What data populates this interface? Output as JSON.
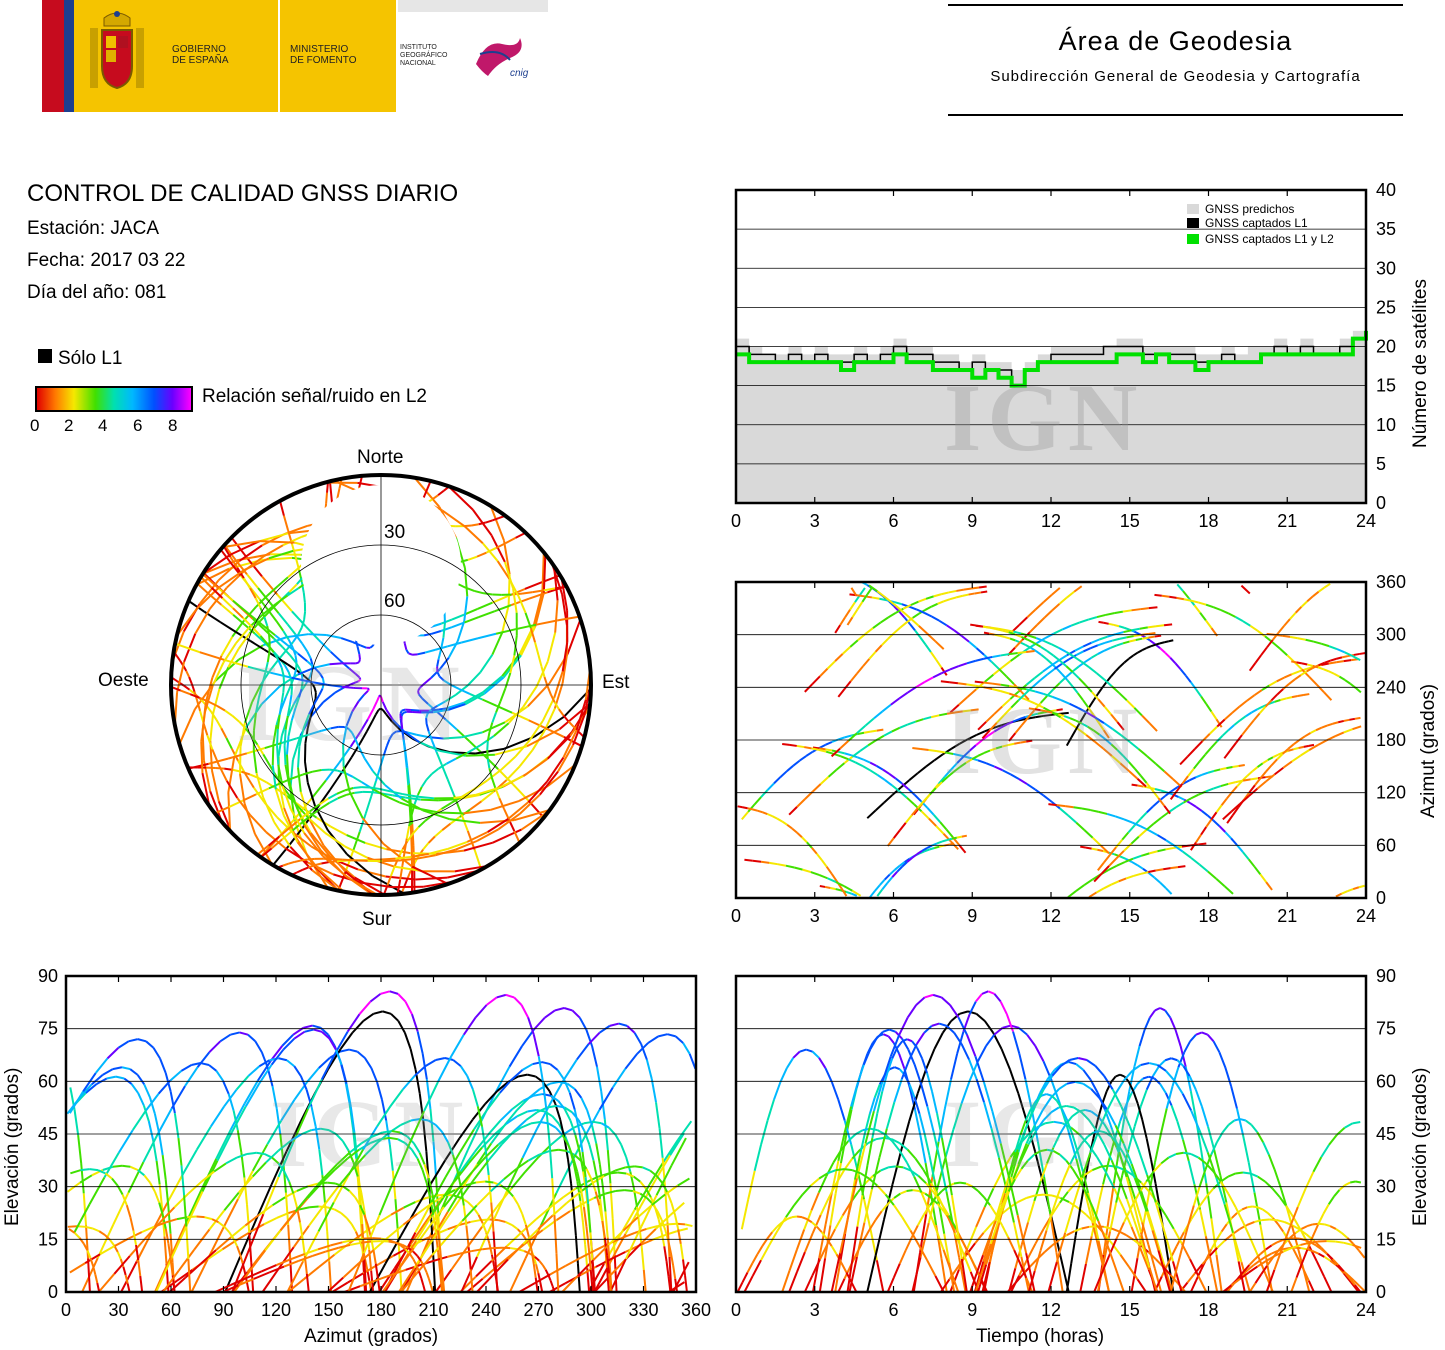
{
  "header": {
    "logo_gobierno": "GOBIERNO\nDE ESPAÑA",
    "logo_ministerio": "MINISTERIO\nDE FOMENTO",
    "logo_ign": "INSTITUTO\nGEOGRÁFICO\nNACIONAL",
    "logo_cnig": "cnig",
    "area_title": "Área de Geodesia",
    "area_subtitle": "Subdirección General de Geodesia y Cartografía"
  },
  "info": {
    "title": "CONTROL DE CALIDAD GNSS DIARIO",
    "station": "Estación: JACA",
    "date": "Fecha: 2017 03 22",
    "doy": "Día del año: 081",
    "legend_l1": "Sólo L1",
    "legend_snr": "Relación señal/ruido en L2",
    "colorbar_ticks": [
      "0",
      "2",
      "4",
      "6",
      "8"
    ]
  },
  "watermark": "IGN",
  "colors": {
    "predicted": "#d9d9d9",
    "l1": "#000000",
    "l1l2": "#00e000",
    "snr_scale": [
      "#e00000",
      "#ff7a00",
      "#f5e800",
      "#40e000",
      "#00e0b0",
      "#00b8ff",
      "#0050ff",
      "#6a00ff",
      "#ff00ff"
    ]
  },
  "chart_data": [
    {
      "id": "skyplot",
      "type": "scatter",
      "title": "",
      "directions": {
        "north": "Norte",
        "south": "Sur",
        "east": "Este",
        "west": "Oeste"
      },
      "elevation_rings": [
        "30",
        "60"
      ],
      "series": [
        {
          "name": "Sólo L1",
          "color": "#000000"
        },
        {
          "name": "Relación señal/ruido en L2",
          "color": "snr_scale"
        }
      ]
    },
    {
      "id": "satellites",
      "type": "area",
      "xlabel": "",
      "ylabel": "Número de satélites",
      "xlim": [
        0,
        24
      ],
      "ylim": [
        0,
        40
      ],
      "xticks": [
        "0",
        "3",
        "6",
        "9",
        "12",
        "15",
        "18",
        "21",
        "24"
      ],
      "yticks": [
        "0",
        "5",
        "10",
        "15",
        "20",
        "25",
        "30",
        "35",
        "40"
      ],
      "legend": [
        "GNSS predichos",
        "GNSS captados L1",
        "GNSS captados L1 y L2"
      ],
      "legend_placement": "top-right",
      "x": [
        0,
        0.5,
        1,
        1.5,
        2,
        2.5,
        3,
        3.5,
        4,
        4.5,
        5,
        5.5,
        6,
        6.5,
        7,
        7.5,
        8,
        8.5,
        9,
        9.5,
        10,
        10.5,
        11,
        11.5,
        12,
        12.5,
        13,
        13.5,
        14,
        14.5,
        15,
        15.5,
        16,
        16.5,
        17,
        17.5,
        18,
        18.5,
        19,
        19.5,
        20,
        20.5,
        21,
        21.5,
        22,
        22.5,
        23,
        23.5,
        24
      ],
      "series": [
        {
          "name": "GNSS predichos",
          "values": [
            21,
            20,
            19,
            19,
            20,
            19,
            20,
            19,
            19,
            20,
            19,
            20,
            21,
            20,
            20,
            19,
            19,
            18,
            19,
            18,
            18,
            17,
            18,
            19,
            20,
            20,
            20,
            20,
            20,
            21,
            21,
            20,
            20,
            20,
            20,
            19,
            19,
            20,
            19,
            20,
            20,
            21,
            20,
            21,
            20,
            20,
            21,
            22,
            23
          ]
        },
        {
          "name": "GNSS captados L1",
          "values": [
            20,
            19,
            19,
            18,
            19,
            18,
            19,
            18,
            18,
            19,
            18,
            19,
            20,
            19,
            19,
            18,
            18,
            17,
            18,
            17,
            17,
            15,
            17,
            18,
            19,
            19,
            19,
            19,
            20,
            20,
            20,
            19,
            19,
            19,
            19,
            18,
            18,
            19,
            18,
            18,
            19,
            20,
            19,
            20,
            19,
            19,
            20,
            21,
            22
          ]
        },
        {
          "name": "GNSS captados L1 y L2",
          "values": [
            19,
            18,
            18,
            18,
            18,
            18,
            18,
            18,
            17,
            18,
            18,
            18,
            19,
            18,
            18,
            17,
            17,
            17,
            16,
            17,
            16,
            15,
            17,
            18,
            18,
            18,
            18,
            18,
            18,
            19,
            19,
            18,
            19,
            18,
            18,
            17,
            18,
            18,
            18,
            18,
            19,
            19,
            19,
            19,
            19,
            19,
            19,
            21,
            22
          ]
        }
      ]
    },
    {
      "id": "azimuth_time",
      "type": "scatter",
      "xlabel": "",
      "ylabel": "Azimut (grados)",
      "xlim": [
        0,
        24
      ],
      "ylim": [
        0,
        360
      ],
      "xticks": [
        "0",
        "3",
        "6",
        "9",
        "12",
        "15",
        "18",
        "21",
        "24"
      ],
      "yticks": [
        "0",
        "60",
        "120",
        "180",
        "240",
        "300",
        "360"
      ]
    },
    {
      "id": "elevation_azimuth",
      "type": "scatter",
      "xlabel": "Azimut (grados)",
      "ylabel": "Elevación (grados)",
      "xlim": [
        0,
        360
      ],
      "ylim": [
        0,
        90
      ],
      "xticks": [
        "0",
        "30",
        "60",
        "90",
        "120",
        "150",
        "180",
        "210",
        "240",
        "270",
        "300",
        "330",
        "360"
      ],
      "yticks": [
        "0",
        "15",
        "30",
        "45",
        "60",
        "75",
        "90"
      ]
    },
    {
      "id": "elevation_time",
      "type": "scatter",
      "xlabel": "Tiempo (horas)",
      "ylabel": "Elevación (grados)",
      "xlim": [
        0,
        24
      ],
      "ylim": [
        0,
        90
      ],
      "xticks": [
        "0",
        "3",
        "6",
        "9",
        "12",
        "15",
        "18",
        "21",
        "24"
      ],
      "yticks": [
        "0",
        "15",
        "30",
        "45",
        "60",
        "75",
        "90"
      ]
    }
  ]
}
